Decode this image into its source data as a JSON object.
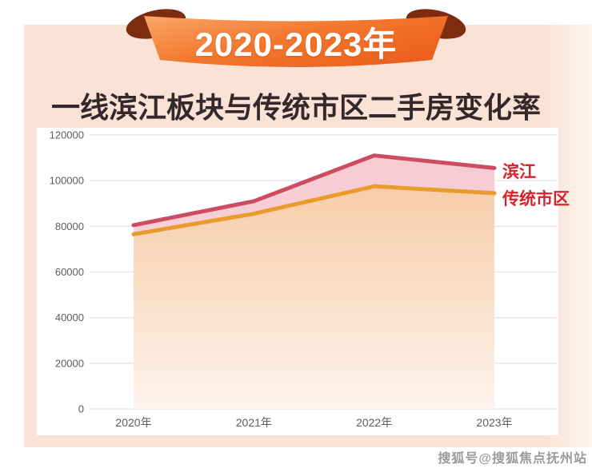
{
  "banner": {
    "title": "2020-2023年"
  },
  "subtitle": "一线滨江板块与传统市区二手房变化率",
  "watermark": "搜狐号@搜狐焦点抚州站",
  "colors": {
    "card_bg": "#fbe2d6",
    "ribbon_light": "#f9a668",
    "ribbon_dark": "#ec5f1e",
    "ribbon_curl": "#7d2c10",
    "legend_text": "#d4252e",
    "gridline": "#e7e4e2"
  },
  "chart_data": {
    "type": "area",
    "categories": [
      "2020年",
      "2021年",
      "2022年",
      "2023年"
    ],
    "series": [
      {
        "name": "滨江",
        "color": "#ce4c62",
        "fill_top": "#f5cbd2",
        "fill_bottom": "#f9dde0",
        "values": [
          80500,
          91000,
          111000,
          105500
        ]
      },
      {
        "name": "传统市区",
        "color": "#e99b2d",
        "fill_top": "#f7cda9",
        "fill_bottom": "#fdf3ec",
        "values": [
          76500,
          85500,
          97500,
          94500
        ]
      }
    ],
    "title": "一线滨江板块与传统市区二手房变化率",
    "xlabel": "",
    "ylabel": "",
    "ylim": [
      0,
      120000
    ],
    "ytick_step": 20000,
    "yticks": [
      "120000",
      "100000",
      "80000",
      "60000",
      "40000",
      "20000",
      "0"
    ],
    "grid": true,
    "legend_position": "right"
  }
}
